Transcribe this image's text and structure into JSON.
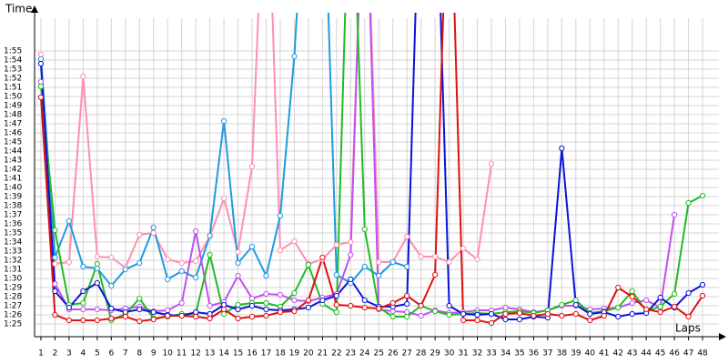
{
  "chart_data": {
    "type": "line",
    "x_label": "Laps",
    "y_label": "Time",
    "grid": true,
    "markers": true,
    "x": [
      1,
      2,
      3,
      4,
      5,
      6,
      7,
      8,
      9,
      10,
      11,
      12,
      13,
      14,
      15,
      16,
      17,
      18,
      19,
      20,
      21,
      22,
      23,
      24,
      25,
      26,
      27,
      28,
      29,
      30,
      31,
      32,
      33,
      34,
      35,
      36,
      37,
      38,
      39,
      40,
      41,
      42,
      43,
      44,
      45,
      46,
      47,
      48
    ],
    "xlim": [
      0.55,
      49.16
    ],
    "xticks": [
      1,
      2,
      3,
      4,
      5,
      6,
      7,
      8,
      9,
      10,
      11,
      12,
      13,
      14,
      15,
      16,
      17,
      18,
      19,
      20,
      21,
      22,
      23,
      24,
      25,
      26,
      27,
      28,
      29,
      30,
      31,
      32,
      33,
      34,
      35,
      36,
      37,
      38,
      39,
      40,
      41,
      42,
      43,
      44,
      45,
      46,
      47,
      48
    ],
    "ylim": [
      83.6,
      118.6
    ],
    "yticks": [
      {
        "value": 85,
        "label": "1:25"
      },
      {
        "value": 86,
        "label": "1:26"
      },
      {
        "value": 87,
        "label": "1:27"
      },
      {
        "value": 88,
        "label": "1:28"
      },
      {
        "value": 89,
        "label": "1:29"
      },
      {
        "value": 90,
        "label": "1:30"
      },
      {
        "value": 91,
        "label": "1:31"
      },
      {
        "value": 92,
        "label": "1:32"
      },
      {
        "value": 93,
        "label": "1:33"
      },
      {
        "value": 94,
        "label": "1:34"
      },
      {
        "value": 95,
        "label": "1:35"
      },
      {
        "value": 96,
        "label": "1:36"
      },
      {
        "value": 97,
        "label": "1:37"
      },
      {
        "value": 98,
        "label": "1:38"
      },
      {
        "value": 99,
        "label": "1:39"
      },
      {
        "value": 100,
        "label": "1:40"
      },
      {
        "value": 101,
        "label": "1:41"
      },
      {
        "value": 102,
        "label": "1:42"
      },
      {
        "value": 103,
        "label": "1:43"
      },
      {
        "value": 104,
        "label": "1:44"
      },
      {
        "value": 105,
        "label": "1:45"
      },
      {
        "value": 106,
        "label": "1:46"
      },
      {
        "value": 107,
        "label": "1:47"
      },
      {
        "value": 108,
        "label": "1:48"
      },
      {
        "value": 109,
        "label": "1:49"
      },
      {
        "value": 110,
        "label": "1:50"
      },
      {
        "value": 111,
        "label": "1:51"
      },
      {
        "value": 112,
        "label": "1:52"
      },
      {
        "value": 113,
        "label": "1:53"
      },
      {
        "value": 114,
        "label": "1:54"
      },
      {
        "value": 115,
        "label": "1:55"
      }
    ],
    "series": [
      {
        "color": "#ff8fb0",
        "values": [
          114.6,
          91.6,
          91.8,
          112.2,
          92.4,
          92.3,
          91.2,
          94.8,
          95.0,
          92.1,
          91.7,
          91.9,
          94.6,
          98.8,
          92.9,
          102.3,
          140,
          93.1,
          94.1,
          91.6,
          92.1,
          93.7,
          94.0,
          140,
          91.8,
          91.8,
          94.6,
          92.4,
          92.4,
          91.8,
          93.3,
          92.1,
          102.6,
          null,
          null,
          null,
          null,
          null,
          null,
          null,
          null,
          null,
          null,
          null,
          null,
          null,
          null,
          null
        ]
      },
      {
        "color": "#1e9be0",
        "values": [
          114.1,
          92.3,
          96.3,
          91.3,
          91.1,
          89.2,
          91.0,
          91.7,
          95.6,
          89.9,
          90.8,
          90.1,
          94.7,
          107.3,
          91.7,
          93.5,
          90.3,
          96.9,
          114.4,
          140,
          140,
          90.4,
          89.5,
          91.3,
          90.3,
          91.8,
          91.3,
          null,
          null,
          null,
          null,
          null,
          null,
          null,
          null,
          null,
          null,
          null,
          null,
          null,
          null,
          null,
          null,
          null,
          null,
          null,
          null,
          null
        ]
      },
      {
        "color": "#c050f0",
        "values": [
          111.6,
          89.4,
          86.6,
          86.6,
          86.6,
          86.5,
          86.7,
          86.9,
          86.4,
          86.5,
          87.3,
          95.2,
          87.0,
          87.4,
          90.3,
          87.8,
          88.3,
          88.2,
          87.6,
          87.5,
          87.9,
          88.3,
          92.6,
          140,
          86.6,
          86.4,
          86.3,
          85.9,
          86.5,
          86.2,
          86.3,
          86.5,
          86.5,
          86.8,
          86.6,
          86.3,
          86.5,
          87.0,
          87.0,
          86.6,
          86.7,
          86.8,
          87.3,
          87.6,
          86.8,
          97.0,
          null,
          null
        ]
      },
      {
        "color": "#22bb22",
        "values": [
          111.1,
          95.3,
          87.1,
          87.3,
          91.6,
          85.4,
          86.1,
          87.8,
          85.6,
          85.8,
          86.1,
          86.1,
          92.6,
          86.1,
          87.1,
          87.3,
          87.3,
          86.9,
          88.4,
          91.5,
          87.2,
          86.3,
          140,
          95.4,
          86.8,
          85.8,
          85.8,
          87.0,
          86.4,
          86.0,
          86.1,
          86.2,
          86.1,
          86.3,
          86.4,
          86.2,
          86.5,
          87.1,
          87.6,
          86.2,
          86.4,
          86.8,
          88.6,
          86.4,
          86.9,
          88.3,
          98.3,
          99.1
        ]
      },
      {
        "color": "#0a14d8",
        "values": [
          113.6,
          88.6,
          86.8,
          88.6,
          89.5,
          86.7,
          86.3,
          86.6,
          86.3,
          86.0,
          85.9,
          86.3,
          86.1,
          87.1,
          86.6,
          87.0,
          86.6,
          86.5,
          86.6,
          86.8,
          87.6,
          88.1,
          89.9,
          87.6,
          86.9,
          86.9,
          87.2,
          140,
          140,
          87.0,
          86.1,
          86.0,
          86.1,
          85.5,
          85.5,
          85.8,
          85.7,
          104.3,
          87.1,
          86.1,
          86.3,
          85.8,
          86.1,
          86.2,
          87.9,
          86.8,
          88.4,
          89.3
        ]
      },
      {
        "color": "#e01010",
        "values": [
          109.9,
          86.0,
          85.4,
          85.4,
          85.4,
          85.6,
          85.8,
          85.3,
          85.5,
          85.9,
          85.9,
          85.8,
          85.6,
          86.6,
          85.6,
          85.8,
          85.9,
          86.3,
          86.4,
          87.6,
          92.3,
          87.1,
          87.0,
          86.8,
          86.7,
          87.3,
          88.1,
          87.0,
          90.4,
          140,
          85.4,
          85.4,
          85.1,
          86.1,
          86.2,
          85.9,
          86.1,
          85.9,
          86.1,
          85.4,
          85.9,
          89.0,
          88.0,
          86.6,
          86.3,
          86.9,
          85.8,
          88.1
        ]
      }
    ]
  }
}
